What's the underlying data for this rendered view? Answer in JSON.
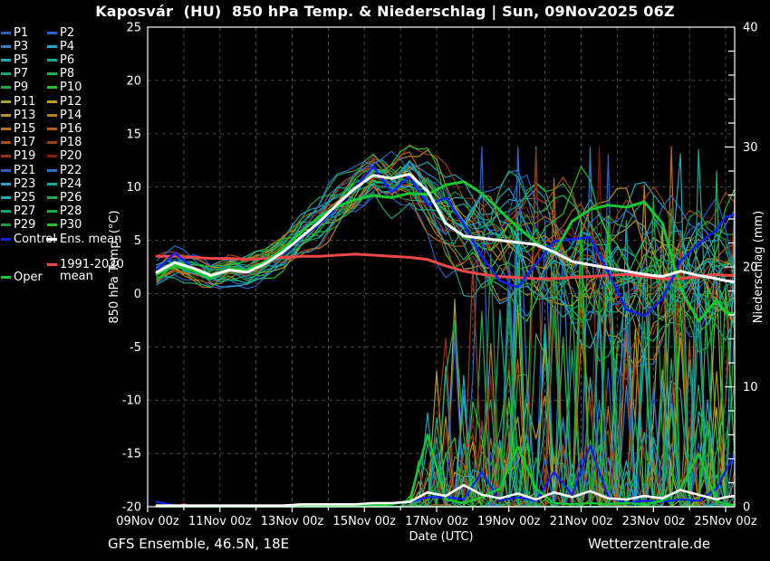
{
  "title": "Kaposvár  (HU)  850 hPa Temp. & Niederschlag | Sun, 09Nov2025 06Z",
  "footer": {
    "left": "GFS Ensemble, 46.5N, 18E",
    "right": "Wetterzentrale.de"
  },
  "legend": {
    "members": [
      {
        "label": "P1",
        "color": "#2e5cc5"
      },
      {
        "label": "P2",
        "color": "#2e64c8"
      },
      {
        "label": "P3",
        "color": "#2e7fc8"
      },
      {
        "label": "P4",
        "color": "#2e9ec8"
      },
      {
        "label": "P5",
        "color": "#18a8b8"
      },
      {
        "label": "P6",
        "color": "#14a890"
      },
      {
        "label": "P7",
        "color": "#14a878"
      },
      {
        "label": "P8",
        "color": "#1cac5c"
      },
      {
        "label": "P9",
        "color": "#1ea83e"
      },
      {
        "label": "P10",
        "color": "#28c228"
      },
      {
        "label": "P11",
        "color": "#a8a820"
      },
      {
        "label": "P12",
        "color": "#b8a018"
      },
      {
        "label": "P13",
        "color": "#b89018"
      },
      {
        "label": "P14",
        "color": "#b88018"
      },
      {
        "label": "P15",
        "color": "#b87014"
      },
      {
        "label": "P16",
        "color": "#b06010"
      },
      {
        "label": "P17",
        "color": "#a85010"
      },
      {
        "label": "P18",
        "color": "#a04010"
      },
      {
        "label": "P19",
        "color": "#98300e"
      },
      {
        "label": "P20",
        "color": "#80200c"
      },
      {
        "label": "P21",
        "color": "#2e5cc5"
      },
      {
        "label": "P22",
        "color": "#2e70c8"
      },
      {
        "label": "P23",
        "color": "#2e9ec8"
      },
      {
        "label": "P24",
        "color": "#18a89c"
      },
      {
        "label": "P25",
        "color": "#14b0c0"
      },
      {
        "label": "P26",
        "color": "#1cac5c"
      },
      {
        "label": "P27",
        "color": "#14a878"
      },
      {
        "label": "P28",
        "color": "#1ea83e"
      },
      {
        "label": "P29",
        "color": "#189838"
      },
      {
        "label": "P30",
        "color": "#28c228"
      }
    ],
    "special": [
      {
        "label": "Control",
        "color": "#1022f0",
        "col": 0,
        "y": 257
      },
      {
        "label": "Ens. mean",
        "color": "#ffffff",
        "col": 1,
        "y": 257
      },
      {
        "label": "1991-2020 mean",
        "color": "#f04848",
        "col": 1,
        "y": 286,
        "wrap": true
      },
      {
        "label": "Oper",
        "color": "#14c832",
        "col": 0,
        "y": 299
      }
    ]
  },
  "chart_data": {
    "type": "line",
    "title": "Kaposvár (HU) 850 hPa Temp. & Niederschlag | Sun, 09Nov2025 06Z",
    "xlabel": "Date (UTC)",
    "ylabel_left": "850 hPa Temp. (°C)",
    "ylabel_right": "Niederschlag (mm)",
    "axes": {
      "x": {
        "tick_labels": [
          "09Nov 00z",
          "11Nov 00z",
          "13Nov 00z",
          "15Nov 00z",
          "17Nov 00z",
          "19Nov 00z",
          "21Nov 00z",
          "23Nov 00z",
          "25Nov 00z"
        ],
        "tick_days": [
          0,
          2,
          4,
          6,
          8,
          10,
          12,
          14,
          16
        ],
        "grid_days": [
          1,
          2,
          3,
          4,
          5,
          6,
          7,
          8,
          9,
          10,
          11,
          12,
          13,
          14,
          15,
          16
        ],
        "days_total": 16.25
      },
      "y_left": {
        "min": -20,
        "max": 25,
        "ticks": [
          25,
          20,
          15,
          10,
          5,
          0,
          -5,
          -10,
          -15,
          -20
        ],
        "grid": [
          20,
          15,
          10,
          5,
          0,
          -5,
          -10,
          -15
        ]
      },
      "y_right": {
        "min": 0,
        "max": 40,
        "ticks": [
          40,
          30,
          20,
          10,
          0
        ],
        "minor_step": 2
      }
    },
    "t_days": [
      0.25,
      0.75,
      1.25,
      1.75,
      2.25,
      2.75,
      3.25,
      3.75,
      4.25,
      4.75,
      5.25,
      5.75,
      6.25,
      6.75,
      7.25,
      7.75,
      8.25,
      8.75,
      9.25,
      9.75,
      10.25,
      10.75,
      11.25,
      11.75,
      12.25,
      12.75,
      13.25,
      13.75,
      14.25,
      14.75,
      15.25,
      15.75,
      16.0,
      16.25
    ],
    "series": [
      {
        "name": "Ens. mean",
        "color": "#ffffff",
        "width": 3,
        "temp": [
          2.0,
          2.9,
          2.4,
          1.7,
          2.2,
          2.0,
          2.8,
          3.9,
          5.3,
          6.7,
          8.4,
          9.9,
          11.1,
          10.8,
          11.2,
          9.6,
          6.6,
          5.4,
          5.2,
          5.0,
          4.8,
          4.6,
          3.9,
          3.0,
          2.7,
          2.4,
          2.1,
          1.8,
          1.6,
          2.1,
          1.7,
          1.4,
          1.2,
          1.1
        ],
        "precip": [
          0.1,
          0.1,
          0.1,
          0.1,
          0.1,
          0.1,
          0.1,
          0.1,
          0.2,
          0.2,
          0.2,
          0.2,
          0.3,
          0.3,
          0.4,
          1.2,
          0.9,
          1.8,
          1.0,
          0.7,
          1.1,
          0.6,
          1.2,
          0.8,
          1.3,
          0.7,
          0.6,
          0.9,
          0.7,
          1.4,
          1.0,
          0.6,
          0.8,
          0.9
        ]
      },
      {
        "name": "Control",
        "color": "#1022f0",
        "width": 2.6,
        "temp": [
          2.2,
          3.8,
          2.4,
          1.7,
          2.2,
          2.1,
          2.9,
          3.8,
          5.2,
          6.5,
          8.2,
          10.0,
          11.9,
          9.5,
          11.0,
          8.3,
          9.0,
          6.5,
          3.5,
          1.2,
          0.6,
          2.8,
          4.9,
          5.1,
          5.3,
          2.0,
          -1.5,
          -2.1,
          -0.5,
          3.0,
          4.7,
          6.0,
          7.2,
          7.4
        ],
        "precip": [
          0.4,
          0.1,
          0.1,
          0.1,
          0.1,
          0.1,
          0.1,
          0.1,
          0.1,
          0.2,
          0.2,
          0.2,
          0.2,
          0.3,
          0.4,
          0.8,
          0.8,
          0.6,
          2.9,
          0.5,
          0.8,
          0.5,
          2.9,
          1.0,
          5.1,
          0.8,
          0.3,
          0.5,
          0.4,
          0.6,
          0.5,
          1.5,
          3.0,
          4.3
        ]
      },
      {
        "name": "Oper",
        "color": "#14c832",
        "width": 3,
        "temp": [
          1.8,
          2.6,
          2.2,
          1.5,
          2.3,
          2.2,
          3.0,
          4.2,
          5.8,
          7.2,
          8.2,
          8.8,
          9.2,
          9.0,
          9.4,
          9.3,
          10.2,
          10.5,
          9.4,
          7.8,
          6.2,
          4.8,
          3.8,
          6.8,
          7.9,
          8.3,
          8.1,
          8.6,
          6.6,
          0.5,
          -2.6,
          -0.6,
          -1.8,
          -1.9
        ],
        "precip": [
          0.05,
          0.05,
          0.05,
          0.05,
          0.05,
          0.05,
          0.05,
          0.05,
          0.05,
          0.1,
          0.1,
          0.1,
          0.1,
          0.2,
          0.5,
          6.0,
          0.6,
          0.3,
          0.8,
          1.5,
          5.0,
          1.5,
          0.3,
          0.2,
          0.3,
          0.2,
          0.3,
          0.2,
          0.5,
          1.5,
          4.4,
          0.5,
          0.2,
          0.15
        ]
      },
      {
        "name": "1991-2020 mean",
        "color": "#f04848",
        "width": 3,
        "temp": [
          3.5,
          3.5,
          3.4,
          3.3,
          3.3,
          3.2,
          3.3,
          3.4,
          3.5,
          3.5,
          3.6,
          3.7,
          3.6,
          3.5,
          3.4,
          3.2,
          2.6,
          2.1,
          1.8,
          1.6,
          1.5,
          1.4,
          1.4,
          1.5,
          1.6,
          1.7,
          1.8,
          1.6,
          1.4,
          1.4,
          1.6,
          1.8,
          1.7,
          1.7
        ]
      }
    ],
    "ensemble": {
      "count": 30,
      "temp_spread": [
        1.2,
        1.2,
        1.3,
        1.3,
        1.4,
        1.4,
        1.5,
        1.6,
        1.8,
        2.0,
        2.2,
        2.4,
        2.6,
        2.8,
        3.0,
        3.4,
        3.9,
        4.4,
        4.9,
        5.4,
        5.8,
        6.1,
        6.4,
        6.6,
        6.8,
        6.9,
        7.0,
        7.0,
        7.0,
        7.0,
        7.0,
        7.0,
        7.0,
        7.0
      ],
      "precip_onset_day": 7.2,
      "precip_max": 30
    }
  }
}
